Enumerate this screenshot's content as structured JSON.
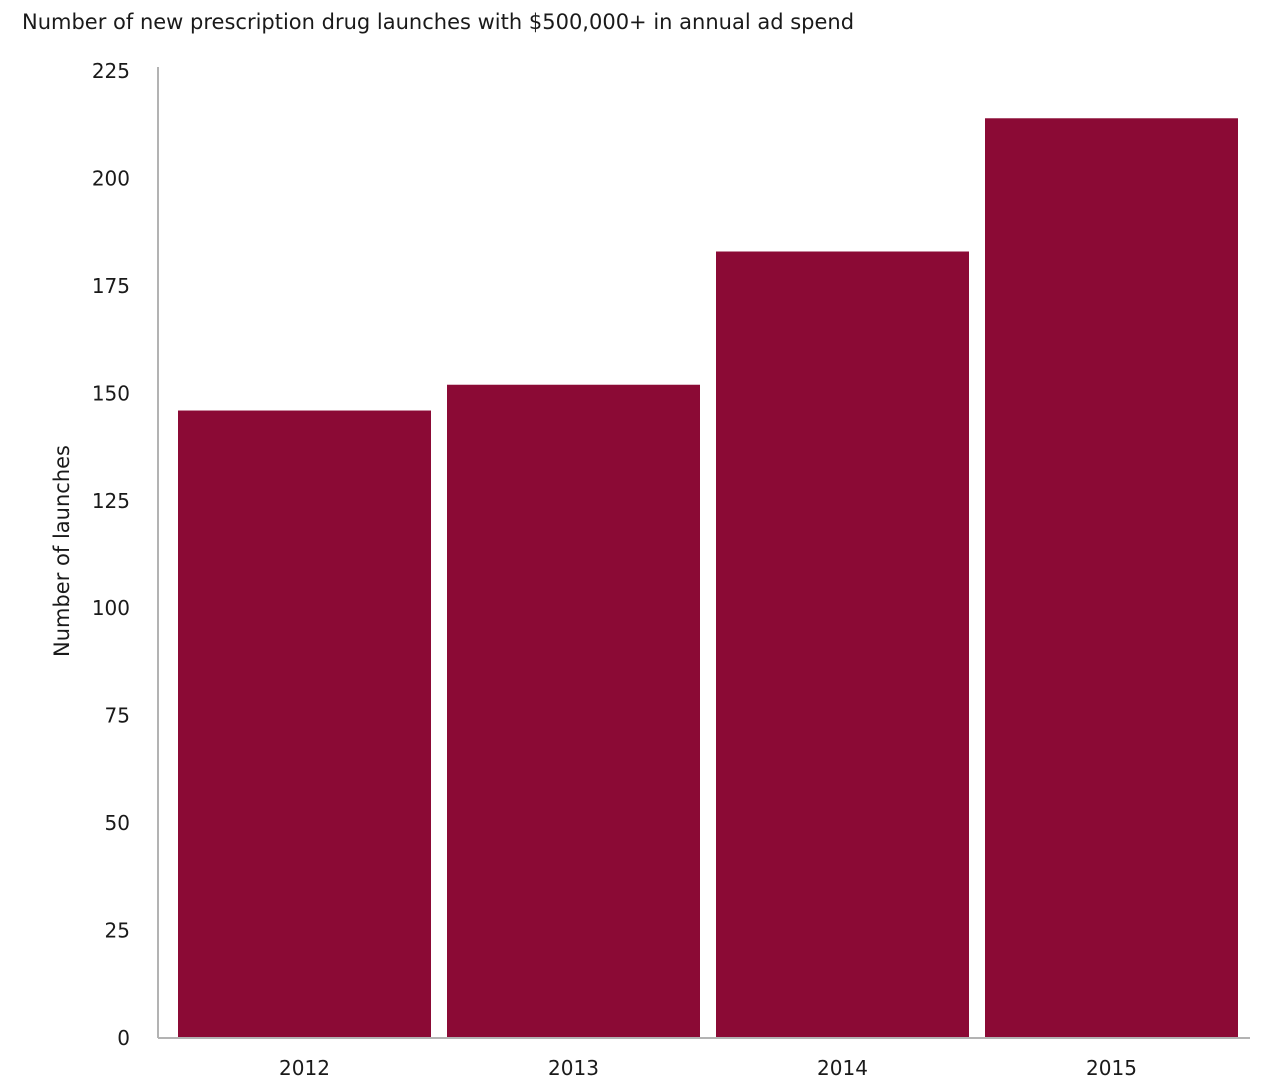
{
  "chart_data": {
    "type": "bar",
    "title": "Number of new prescription drug launches with $500,000+ in annual ad spend",
    "xlabel": "",
    "ylabel": "Number of launches",
    "categories": [
      "2012",
      "2013",
      "2014",
      "2015"
    ],
    "values": [
      146,
      152,
      183,
      214
    ],
    "ylim": [
      0,
      225
    ],
    "yticks": [
      0,
      25,
      50,
      75,
      100,
      125,
      150,
      175,
      200,
      225
    ],
    "ytick_labels": [
      "0",
      "25",
      "50",
      "75",
      "100",
      "125",
      "150",
      "175",
      "200",
      "225"
    ],
    "grid": false,
    "legend": "none",
    "bar_color": "#8b0a35",
    "axis_color": "#b3b3b3"
  }
}
